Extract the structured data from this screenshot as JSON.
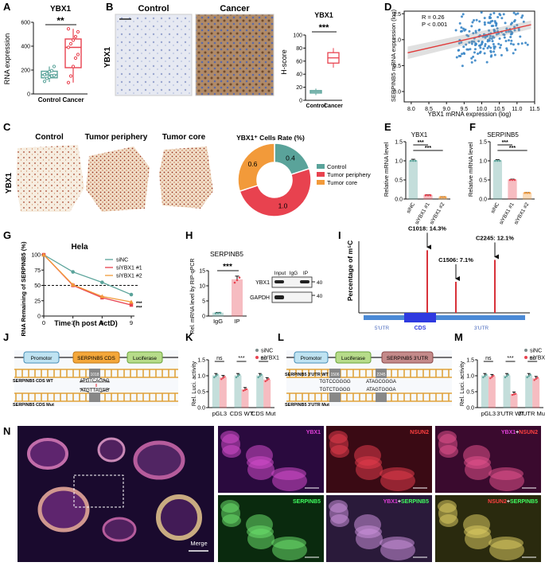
{
  "colors": {
    "teal": "#5aa39a",
    "red": "#e8424f",
    "orange": "#f29a3a",
    "brown": "#8b3a20",
    "blue_bar": "#2f3ae0",
    "region_blue": "#4b8ad6"
  },
  "panels": {
    "A": {
      "letter": "A",
      "title": "YBX1",
      "ylabel": "RNA expression",
      "sig": "**"
    },
    "B": {
      "letter": "B",
      "control": "Control",
      "cancer": "Cancer",
      "row_label": "YBX1",
      "title": "YBX1",
      "ylabel": "H-score",
      "sig": "***"
    },
    "C": {
      "letter": "C",
      "titles": [
        "Control",
        "Tumor periphery",
        "Tumor core"
      ],
      "row_label": "YBX1"
    },
    "D": {
      "letter": "D",
      "annot1": "R = 0.26",
      "annot2": "P < 0.001",
      "xlabel": "YBX1 mRNA expression (log)",
      "ylabel": "SERPINB5 mRNA expression (log)"
    },
    "E": {
      "letter": "E",
      "title": "YBX1",
      "ylabel": "Relative mRNA level"
    },
    "F": {
      "letter": "F",
      "title": "SERPINB5",
      "ylabel": "Relative mRNA level"
    },
    "G": {
      "letter": "G",
      "title": "Hela",
      "xlabel": "Time (h post ActD)",
      "ylabel": "RNA Remaining of SERPINB5 (%)"
    },
    "H": {
      "letter": "H",
      "title": "SERPINB5",
      "ylabel": "Rel. mRNA level by RIP-qPCR",
      "sig": "***",
      "blot_cols": [
        "Input",
        "IgG",
        "IP"
      ],
      "blot_rows": [
        "YBX1",
        "GAPDH"
      ],
      "marker": "40"
    },
    "I": {
      "letter": "I",
      "ylabel": "Percentage of m⁵C",
      "regions": [
        "5'UTR",
        "CDS",
        "3'UTR"
      ]
    },
    "J": {
      "letter": "J",
      "boxes": [
        "Promotor",
        "SERPINB5 CDS",
        "Luciferase"
      ],
      "site": "1018",
      "wt_label": "SERPINB5 CDS WT",
      "mut_label": "SERPINB5 CDS Mut",
      "seq_wt": "ATGTCAGAG",
      "seq_mut": "ATGTTAGAG"
    },
    "K": {
      "letter": "K",
      "ylabel": "Rel. Luci. activity"
    },
    "L": {
      "letter": "L",
      "boxes": [
        "Promotor",
        "Luciferase",
        "SERPINB5 3'UTR"
      ],
      "sites": [
        "1506",
        "2245"
      ],
      "wt_label": "SERPINB5 3'UTR WT",
      "mut_label": "SERPINB5 3'UTR Mut",
      "seq_wt": [
        "TGTCCGGGG",
        "ATAGCGGGA"
      ],
      "seq_mut": [
        "TGTCTGGGG",
        "ATAGTGGGA"
      ]
    },
    "M": {
      "letter": "M",
      "ylabel": "Rel. Luci. activity"
    },
    "N": {
      "letter": "N",
      "merge": "Merge",
      "labels": [
        [
          "YBX1"
        ],
        [
          "NSUN2"
        ],
        [
          "YBX1",
          "NSUN2"
        ],
        [
          "SERPINB5"
        ],
        [
          "YBX1",
          "SERPINB5"
        ],
        [
          "NSUN2",
          "SERPINB5"
        ]
      ]
    }
  },
  "chart_data": [
    {
      "panel": "A",
      "type": "box",
      "categories": [
        "Control",
        "Cancer"
      ],
      "ylim": [
        0,
        600
      ],
      "yticks": [
        0,
        200,
        400,
        600
      ],
      "boxes": [
        {
          "min": 100,
          "q1": 135,
          "median": 160,
          "q3": 190,
          "max": 230
        },
        {
          "min": 95,
          "q1": 220,
          "median": 390,
          "q3": 460,
          "max": 545
        }
      ],
      "points": [
        [
          105,
          130,
          140,
          150,
          155,
          160,
          170,
          185,
          195,
          230
        ],
        [
          95,
          150,
          230,
          300,
          330,
          390,
          420,
          450,
          480,
          520,
          545
        ]
      ]
    },
    {
      "panel": "B",
      "type": "box",
      "categories": [
        "Control",
        "Cancer"
      ],
      "ylim": [
        0,
        100
      ],
      "yticks": [
        0,
        20,
        40,
        60,
        80,
        100
      ],
      "boxes": [
        {
          "min": 8,
          "q1": 11,
          "median": 13,
          "q3": 15,
          "max": 18
        },
        {
          "min": 50,
          "q1": 57,
          "median": 65,
          "q3": 73,
          "max": 80
        }
      ]
    },
    {
      "panel": "C",
      "type": "pie",
      "title": "YBX1⁺ Cells Rate (%)",
      "labels": [
        "Control",
        "Tumor periphery",
        "Tumor core"
      ],
      "values": [
        0.4,
        1.0,
        0.6
      ]
    },
    {
      "panel": "D",
      "type": "scatter",
      "xlim": [
        7.8,
        11.5
      ],
      "ylim": [
        -0.2,
        1.55
      ],
      "xticks": [
        8.0,
        8.5,
        9.0,
        9.5,
        10.0,
        10.5,
        11.0,
        11.5
      ],
      "yticks": [
        0.0,
        0.5,
        1.0,
        1.5
      ],
      "fit": {
        "slope": 0.155,
        "intercept": -0.478
      }
    },
    {
      "panel": "E",
      "type": "bar",
      "categories": [
        "siNC",
        "siYBX1 #1",
        "siYBX1 #2"
      ],
      "values": [
        1.0,
        0.1,
        0.05
      ],
      "errors": [
        0.04,
        0.01,
        0.01
      ],
      "ylim": [
        0,
        1.5
      ],
      "yticks": [
        0.0,
        0.5,
        1.0,
        1.5
      ],
      "sig": [
        "***",
        "***"
      ]
    },
    {
      "panel": "F",
      "type": "bar",
      "categories": [
        "siNC",
        "siYBX1 #1",
        "siYBX1 #2"
      ],
      "values": [
        1.0,
        0.5,
        0.16
      ],
      "errors": [
        0.03,
        0.02,
        0.01
      ],
      "ylim": [
        0,
        1.5
      ],
      "yticks": [
        0.0,
        0.5,
        1.0,
        1.5
      ],
      "sig": [
        "***",
        "***"
      ]
    },
    {
      "panel": "G",
      "type": "line",
      "x": [
        0,
        3,
        6,
        9
      ],
      "xlim": [
        0,
        9
      ],
      "ylim": [
        0,
        100
      ],
      "xticks": [
        0,
        3,
        6,
        9
      ],
      "yticks": [
        0,
        25,
        50,
        75,
        100
      ],
      "threshold": 50,
      "series": [
        {
          "name": "siNC",
          "values": [
            100,
            72,
            55,
            35
          ]
        },
        {
          "name": "siYBX1 #1",
          "values": [
            100,
            50,
            30,
            18
          ]
        },
        {
          "name": "siYBX1 #2",
          "values": [
            100,
            51,
            32,
            23
          ]
        }
      ],
      "sig": [
        "***",
        "***"
      ]
    },
    {
      "panel": "H",
      "type": "bar",
      "categories": [
        "IgG",
        "IP"
      ],
      "values": [
        1.0,
        12.0
      ],
      "errors": [
        0.2,
        1.2
      ],
      "ylim": [
        0,
        15
      ],
      "yticks": [
        0,
        5,
        10,
        15
      ]
    },
    {
      "panel": "I",
      "type": "bar",
      "annotations": [
        {
          "label": "C1018: 14.3%",
          "value": 14.3
        },
        {
          "label": "C1506: 7.1%",
          "value": 7.1
        },
        {
          "label": "C2245: 12.1%",
          "value": 12.1
        }
      ]
    },
    {
      "panel": "K",
      "type": "bar",
      "categories": [
        "pGL3",
        "CDS WT",
        "CDS Mut"
      ],
      "ylim": [
        0,
        1.5
      ],
      "yticks": [
        0.0,
        0.5,
        1.0,
        1.5
      ],
      "series": [
        {
          "name": "siNC",
          "values": [
            1.0,
            1.0,
            1.0
          ]
        },
        {
          "name": "siYBX1",
          "values": [
            0.94,
            0.56,
            0.87
          ]
        }
      ],
      "sig": [
        "ns",
        "***",
        "ns"
      ]
    },
    {
      "panel": "M",
      "type": "bar",
      "categories": [
        "pGL3",
        "3'UTR WT",
        "3'UTR Mut"
      ],
      "ylim": [
        0,
        1.5
      ],
      "yticks": [
        0.0,
        0.5,
        1.0,
        1.5
      ],
      "series": [
        {
          "name": "siNC",
          "values": [
            1.0,
            1.0,
            1.0
          ]
        },
        {
          "name": "siYBX1",
          "values": [
            0.97,
            0.42,
            0.91
          ]
        }
      ],
      "sig": [
        "ns",
        "***",
        "ns"
      ]
    }
  ]
}
